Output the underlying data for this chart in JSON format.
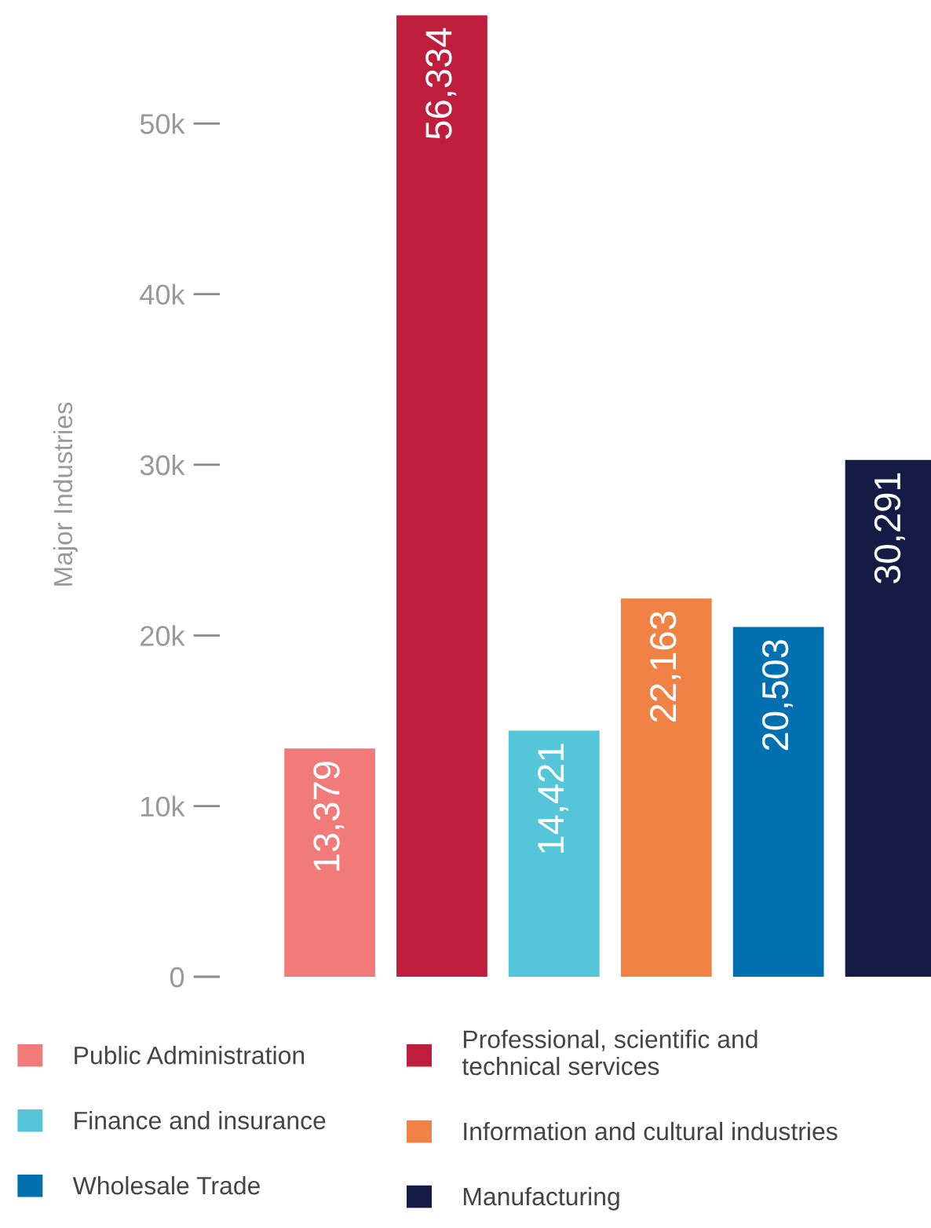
{
  "chart_data": {
    "type": "bar",
    "ylabel": "Major Industries",
    "categories": [
      null,
      null,
      null,
      null,
      null,
      null
    ],
    "series": [
      {
        "name": "Public Administration",
        "color": "#f07b79",
        "values": [
          13379,
          null,
          null,
          null,
          null,
          null
        ],
        "value_labels": [
          "13,379",
          null,
          null,
          null,
          null,
          null
        ]
      },
      {
        "name": "Professional, scientific and\ntechnical services",
        "color": "#be1e3c",
        "values": [
          null,
          56334,
          null,
          null,
          null,
          null
        ],
        "value_labels": [
          null,
          "56,334",
          null,
          null,
          null,
          null
        ]
      },
      {
        "name": "Finance and insurance",
        "color": "#55c6d9",
        "values": [
          null,
          null,
          14421,
          null,
          null,
          null
        ],
        "value_labels": [
          null,
          null,
          "14,421",
          null,
          null,
          null
        ]
      },
      {
        "name": "Information and cultural industries",
        "color": "#ef8244",
        "values": [
          null,
          null,
          null,
          22163,
          null,
          null
        ],
        "value_labels": [
          null,
          null,
          null,
          "22,163",
          null,
          null
        ]
      },
      {
        "name": "Wholesale Trade",
        "color": "#0070b0",
        "values": [
          null,
          null,
          null,
          null,
          20503,
          null
        ],
        "value_labels": [
          null,
          null,
          null,
          null,
          "20,503",
          null
        ]
      },
      {
        "name": "Manufacturing",
        "color": "#141c45",
        "values": [
          null,
          null,
          null,
          null,
          null,
          30291
        ],
        "value_labels": [
          null,
          null,
          null,
          null,
          null,
          "30,291"
        ]
      }
    ],
    "ylim": [
      0,
      56500
    ],
    "yticks": [
      {
        "value": 0,
        "label": "0"
      },
      {
        "value": 10000,
        "label": "10k"
      },
      {
        "value": 20000,
        "label": "20k"
      },
      {
        "value": 30000,
        "label": "30k"
      },
      {
        "value": 40000,
        "label": "40k"
      },
      {
        "value": 50000,
        "label": "50k"
      }
    ],
    "stacked": true,
    "grid": false,
    "legend": "bottom",
    "tick_labels": "y"
  }
}
